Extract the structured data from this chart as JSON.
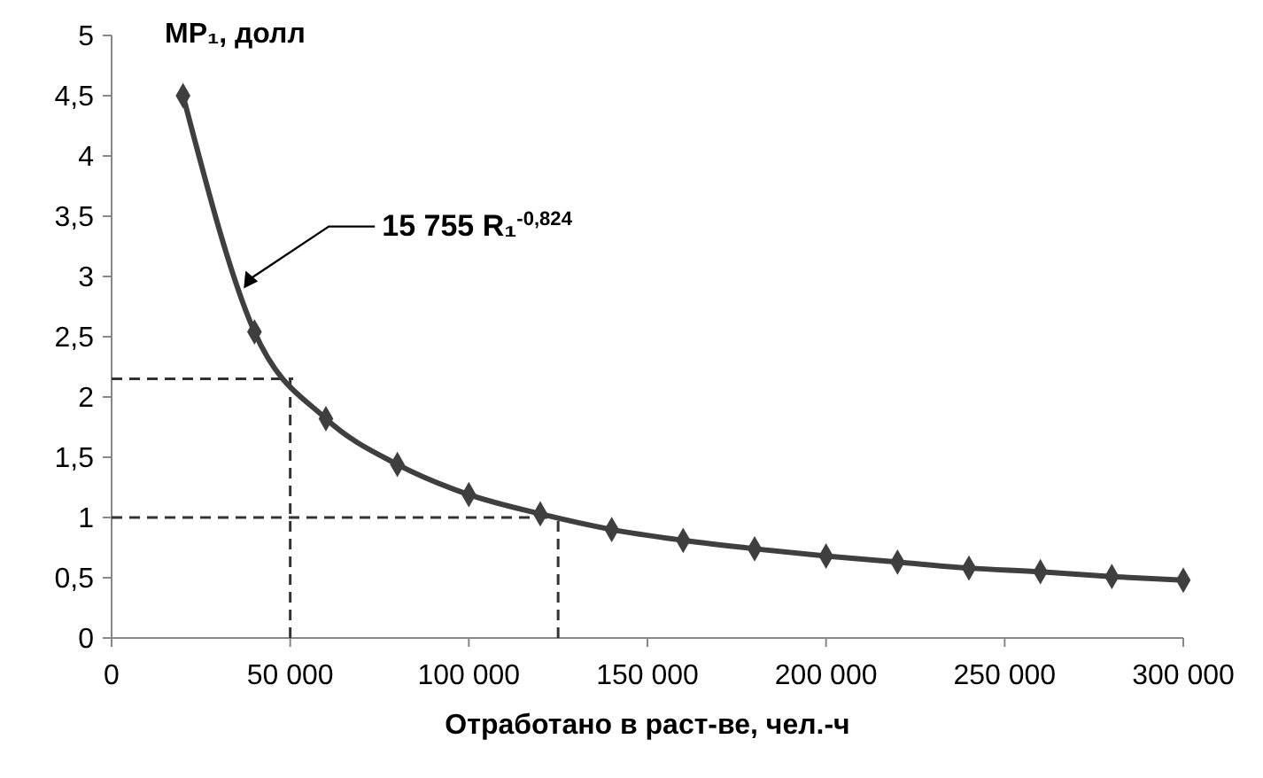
{
  "chart_data": {
    "type": "line",
    "ylabel": "MP₁, долл",
    "xlabel": "Отработано в раст-ве, чел.-ч",
    "x": [
      20000,
      40000,
      60000,
      80000,
      100000,
      120000,
      140000,
      160000,
      180000,
      200000,
      220000,
      240000,
      260000,
      280000,
      300000
    ],
    "series": [
      {
        "color": "#3f3f3f",
        "values": [
          4.5,
          2.54,
          1.82,
          1.44,
          1.19,
          1.03,
          0.9,
          0.81,
          0.74,
          0.68,
          0.63,
          0.58,
          0.55,
          0.51,
          0.48
        ]
      }
    ],
    "marker": "diamond",
    "line_style": "solid",
    "xlim": [
      0,
      300000
    ],
    "xticks": [
      0,
      {
        "value": 50000,
        "label": "50 000"
      },
      {
        "value": 100000,
        "label": "100 000"
      },
      {
        "value": 150000,
        "label": "150 000"
      },
      {
        "value": 200000,
        "label": "200 000"
      },
      {
        "value": 250000,
        "label": "250 000"
      },
      {
        "value": 300000,
        "label": "300 000"
      }
    ],
    "ylim": [
      0,
      5
    ],
    "yticks": [
      0,
      {
        "value": 0.5,
        "label": "0,5"
      },
      1,
      {
        "value": 1.5,
        "label": "1,5"
      },
      2,
      {
        "value": 2.5,
        "label": "2,5"
      },
      3,
      {
        "value": 3.5,
        "label": "3,5"
      },
      4,
      {
        "value": 4.5,
        "label": "4,5"
      },
      5
    ],
    "ref_lines": [
      {
        "axis": "x",
        "value": 50000,
        "line_style": "dashed",
        "color": "#333333"
      },
      {
        "axis": "y",
        "value": 2.15,
        "line_style": "dashed",
        "color": "#333333"
      },
      {
        "axis": "x",
        "value": 125000,
        "line_style": "dashed",
        "color": "#333333"
      },
      {
        "axis": "y",
        "value": 1,
        "line_style": "dashed",
        "color": "#333333"
      }
    ],
    "annotations": [
      {
        "text": "15 755 R₁$^{-0,824}$",
        "x": 37000,
        "y": 2.9
      }
    ]
  }
}
